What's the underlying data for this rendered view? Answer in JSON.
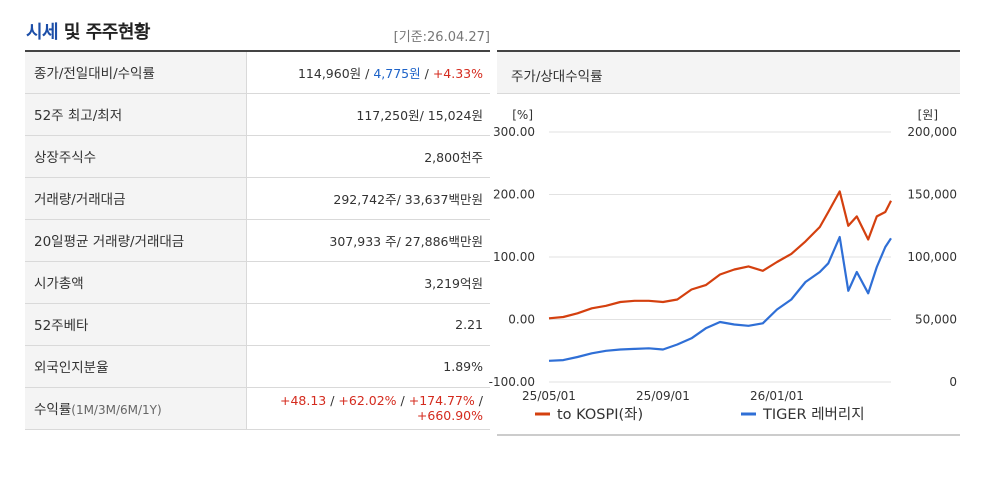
{
  "header": {
    "title_main": "시세",
    "title_rest": " 및 주주현황",
    "basis": "[기준:26.04.27]"
  },
  "rows": [
    {
      "label": "종가/전일대비/수익률",
      "parts": [
        {
          "text": "114,960원",
          "cls": ""
        },
        {
          "text": " / ",
          "cls": ""
        },
        {
          "text": "4,775원",
          "cls": "dn"
        },
        {
          "text": " / ",
          "cls": ""
        },
        {
          "text": "+4.33%",
          "cls": "up"
        }
      ]
    },
    {
      "label": "52주 최고/최저",
      "parts": [
        {
          "text": "117,250원/ 15,024원",
          "cls": ""
        }
      ]
    },
    {
      "label": "상장주식수",
      "parts": [
        {
          "text": "2,800천주",
          "cls": ""
        }
      ]
    },
    {
      "label": "거래량/거래대금",
      "parts": [
        {
          "text": "292,742주/ 33,637백만원",
          "cls": ""
        }
      ]
    },
    {
      "label": "20일평균 거래량/거래대금",
      "parts": [
        {
          "text": "307,933 주/ 27,886백만원",
          "cls": ""
        }
      ]
    },
    {
      "label": "시가총액",
      "parts": [
        {
          "text": "3,219억원",
          "cls": ""
        }
      ]
    },
    {
      "label": "52주베타",
      "parts": [
        {
          "text": "2.21",
          "cls": ""
        }
      ]
    },
    {
      "label": "외국인지분율",
      "parts": [
        {
          "text": "1.89%",
          "cls": ""
        }
      ]
    },
    {
      "label": "수익률",
      "label_small": "(1M/3M/6M/1Y)",
      "parts": [
        {
          "text": "+48.13",
          "cls": "up"
        },
        {
          "text": " / ",
          "cls": ""
        },
        {
          "text": "+62.02%",
          "cls": "up"
        },
        {
          "text": " / ",
          "cls": ""
        },
        {
          "text": "+174.77%",
          "cls": "up"
        },
        {
          "text": " / ",
          "cls": ""
        },
        {
          "text": "+660.90%",
          "cls": "up"
        }
      ]
    }
  ],
  "chart_title": "주가/상대수익률",
  "chart_data": {
    "type": "line",
    "left_unit": "[%]",
    "right_unit": "[원]",
    "left_ticks": [
      "300.00",
      "200.00",
      "100.00",
      "0.00",
      "-100.00"
    ],
    "right_ticks": [
      "200,000",
      "150,000",
      "100,000",
      "50,000",
      "0"
    ],
    "left_range": [
      -100,
      300
    ],
    "right_range": [
      0,
      200000
    ],
    "x_ticks": [
      "25/05/01",
      "25/09/01",
      "26/01/01"
    ],
    "x_tick_positions": [
      0,
      4,
      8
    ],
    "x_range": [
      0,
      12
    ],
    "colors": {
      "kospi": "#d4400f",
      "tiger": "#2f6fd6"
    },
    "series": [
      {
        "name": "to KOSPI(좌)",
        "axis": "left",
        "color": "#d4400f",
        "points": [
          [
            0,
            2
          ],
          [
            0.5,
            4
          ],
          [
            1,
            10
          ],
          [
            1.5,
            18
          ],
          [
            2,
            22
          ],
          [
            2.5,
            28
          ],
          [
            3,
            30
          ],
          [
            3.5,
            30
          ],
          [
            4,
            28
          ],
          [
            4.5,
            32
          ],
          [
            5,
            48
          ],
          [
            5.5,
            55
          ],
          [
            6,
            72
          ],
          [
            6.5,
            80
          ],
          [
            7,
            85
          ],
          [
            7.5,
            78
          ],
          [
            8,
            92
          ],
          [
            8.5,
            105
          ],
          [
            9,
            125
          ],
          [
            9.5,
            148
          ],
          [
            9.8,
            172
          ],
          [
            10.2,
            205
          ],
          [
            10.5,
            150
          ],
          [
            10.8,
            165
          ],
          [
            11.2,
            128
          ],
          [
            11.5,
            165
          ],
          [
            11.8,
            172
          ],
          [
            12,
            190
          ]
        ]
      },
      {
        "name": "TIGER 레버리지",
        "axis": "right",
        "color": "#2f6fd6",
        "points": [
          [
            0,
            17000
          ],
          [
            0.5,
            17500
          ],
          [
            1,
            20000
          ],
          [
            1.5,
            23000
          ],
          [
            2,
            25000
          ],
          [
            2.5,
            26000
          ],
          [
            3,
            26500
          ],
          [
            3.5,
            27000
          ],
          [
            4,
            26000
          ],
          [
            4.5,
            30000
          ],
          [
            5,
            35000
          ],
          [
            5.5,
            43000
          ],
          [
            6,
            48000
          ],
          [
            6.5,
            46000
          ],
          [
            7,
            45000
          ],
          [
            7.5,
            47000
          ],
          [
            8,
            58000
          ],
          [
            8.5,
            66000
          ],
          [
            9,
            80000
          ],
          [
            9.5,
            88000
          ],
          [
            9.8,
            95000
          ],
          [
            10.2,
            116000
          ],
          [
            10.5,
            73000
          ],
          [
            10.8,
            88000
          ],
          [
            11.2,
            71000
          ],
          [
            11.5,
            92000
          ],
          [
            11.8,
            108000
          ],
          [
            12,
            115000
          ]
        ]
      }
    ]
  }
}
